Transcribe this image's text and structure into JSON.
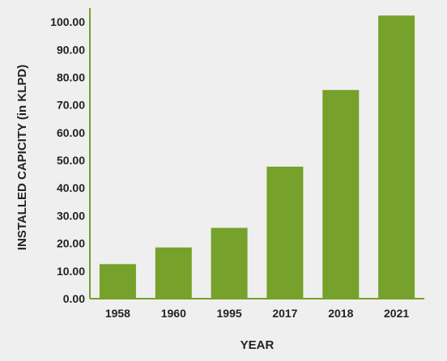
{
  "chart_data": {
    "type": "bar",
    "title": "",
    "xlabel": "YEAR",
    "ylabel": "INSTALLED CAPICITY (in KLPD)",
    "categories": [
      "1958",
      "1960",
      "1995",
      "2017",
      "2018",
      "2021"
    ],
    "values": [
      12.5,
      18.5,
      25.6,
      47.7,
      75.4,
      102.3
    ],
    "ylim": [
      0,
      105
    ],
    "yticks": [
      "0.00",
      "10.00",
      "20.00",
      "30.00",
      "40.00",
      "50.00",
      "60.00",
      "70.00",
      "80.00",
      "90.00",
      "100.00"
    ],
    "grid": false,
    "legend": "none",
    "bar_color": "#76a12a",
    "axis_color": "#76a12a",
    "background": "#efefef"
  }
}
